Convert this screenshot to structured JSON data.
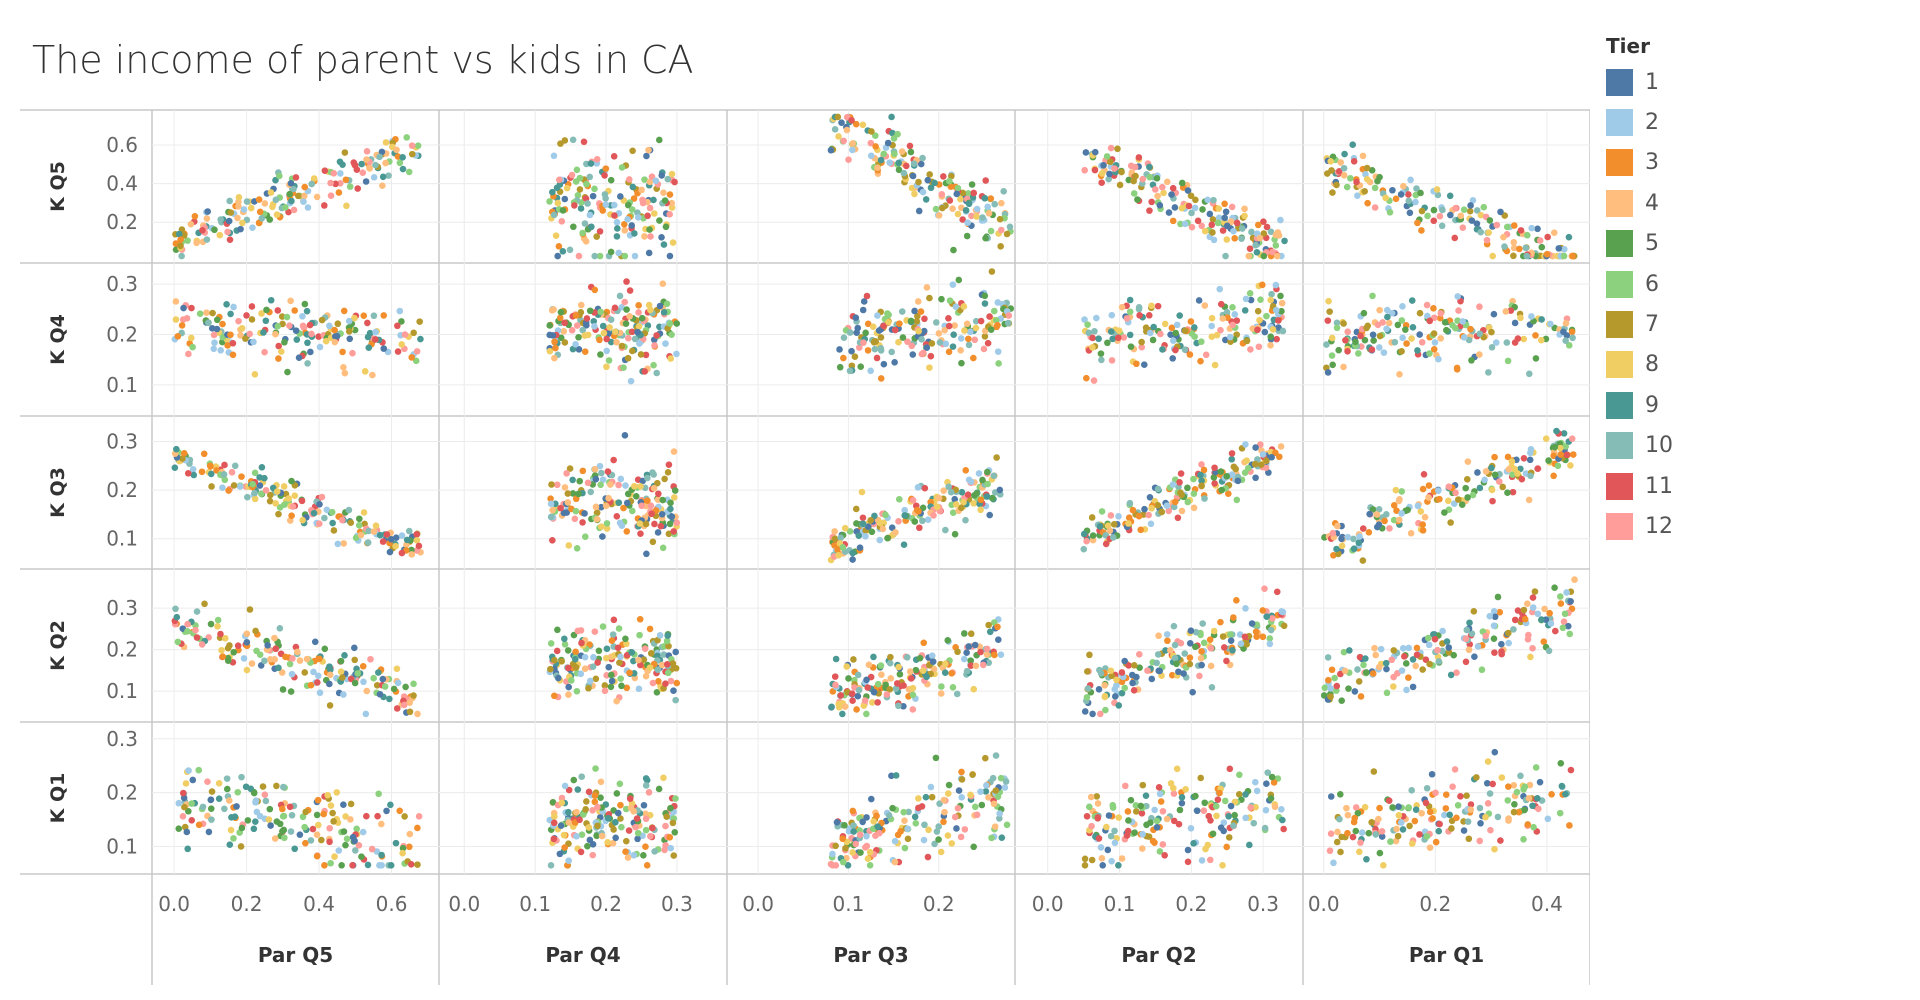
{
  "chart_data": {
    "type": "scatter",
    "title": "The income of parent vs kids in CA",
    "columns": [
      "Par Q5",
      "Par Q4",
      "Par Q3",
      "Par Q2",
      "Par Q1"
    ],
    "rows": [
      "K Q5",
      "K Q4",
      "K Q3",
      "K Q2",
      "K Q1"
    ],
    "column_ticks": [
      [
        "0.0",
        "0.2",
        "0.4",
        "0.6"
      ],
      [
        "0.0",
        "0.1",
        "0.2",
        "0.3"
      ],
      [
        "0.0",
        "0.1",
        "0.2"
      ],
      [
        "0.0",
        "0.1",
        "0.2",
        "0.3"
      ],
      [
        "0.0",
        "0.2",
        "0.4"
      ]
    ],
    "column_ranges": [
      [
        -0.05,
        0.72
      ],
      [
        -0.03,
        0.365
      ],
      [
        -0.03,
        0.28
      ],
      [
        -0.04,
        0.35
      ],
      [
        -0.03,
        0.47
      ]
    ],
    "row_ticks": [
      [
        "0.2",
        "0.4",
        "0.6"
      ],
      [
        "0.1",
        "0.2",
        "0.3"
      ],
      [
        "0.1",
        "0.2",
        "0.3"
      ],
      [
        "0.1",
        "0.2",
        "0.3"
      ],
      [
        "0.1",
        "0.2",
        "0.3"
      ]
    ],
    "row_ranges": [
      [
        0.02,
        0.75
      ],
      [
        0.05,
        0.33
      ],
      [
        0.05,
        0.34
      ],
      [
        0.04,
        0.38
      ],
      [
        0.06,
        0.32
      ]
    ],
    "grid": true,
    "legend": {
      "title": "Tier",
      "position": "right",
      "entries": [
        {
          "label": "1",
          "color": "#4e79a7"
        },
        {
          "label": "2",
          "color": "#a0cbe8"
        },
        {
          "label": "3",
          "color": "#f28e2b"
        },
        {
          "label": "4",
          "color": "#ffbe7d"
        },
        {
          "label": "5",
          "color": "#59a14f"
        },
        {
          "label": "6",
          "color": "#8cd17d"
        },
        {
          "label": "7",
          "color": "#b6992d"
        },
        {
          "label": "8",
          "color": "#f1ce63"
        },
        {
          "label": "9",
          "color": "#499894"
        },
        {
          "label": "10",
          "color": "#86bcb6"
        },
        {
          "label": "11",
          "color": "#e15759"
        },
        {
          "label": "12",
          "color": "#ff9d9a"
        }
      ]
    },
    "panel_trends": [
      [
        "Par Q5 vs K Q5: rising; high parent share -> high kid share (approx. 0.05->0.65)",
        "Par Q4 vs K Q5: points cluster x 0.15-0.27, y 0.15-0.6",
        "Par Q3 vs K Q5: falling from 0.65 at x 0.1 to 0.2 at x 0.27",
        "Par Q2 vs K Q5: falling from 0.65 at x 0.05 to 0.05 at x 0.33",
        "Par Q1 vs K Q5: falling from 0.65 at x 0.0 to 0.03 at x 0.44"
      ],
      [
        "Par Q5 vs K Q4: flat around 0.2",
        "Par Q4 vs K Q4: cluster around (0.2, 0.21)",
        "Par Q3 vs K Q4: cluster around (0.2, 0.21)",
        "Par Q2 vs K Q4: cluster around (0.15, 0.21)",
        "Par Q1 vs K Q4: cluster around (0.1, 0.21)"
      ],
      [
        "Par Q5 vs K Q3: falling from 0.27 at x 0.0 to 0.07 at x 0.7",
        "Par Q4 vs K Q3: cluster around (0.2, 0.18)",
        "Par Q3 vs K Q3: rising from 0.08 at x 0.1 to 0.22 at x 0.25",
        "Par Q2 vs K Q3: rising from 0.07 at x 0.05 to 0.28 at x 0.32",
        "Par Q1 vs K Q3: rising from 0.08 at x 0.0 to 0.28 at x 0.45"
      ],
      [
        "Par Q5 vs K Q2: falling from 0.27 at x 0.0 to 0.07 at x 0.7",
        "Par Q4 vs K Q2: cluster around (0.2, 0.17)",
        "Par Q3 vs K Q2: rising from 0.08 to 0.24",
        "Par Q2 vs K Q2: rising from 0.07 to 0.33",
        "Par Q1 vs K Q2: rising from 0.08 to 0.33"
      ],
      [
        "Par Q5 vs K Q1: two bands around 0.18 and 0.1",
        "Par Q4 vs K Q1: two bands around 0.18 and 0.1",
        "Par Q3 vs K Q1: bands around 0.18 and 0.1, rising",
        "Par Q2 vs K Q1: bands around 0.18 and 0.12",
        "Par Q1 vs K Q1: bands around 0.18 and 0.11"
      ]
    ]
  }
}
